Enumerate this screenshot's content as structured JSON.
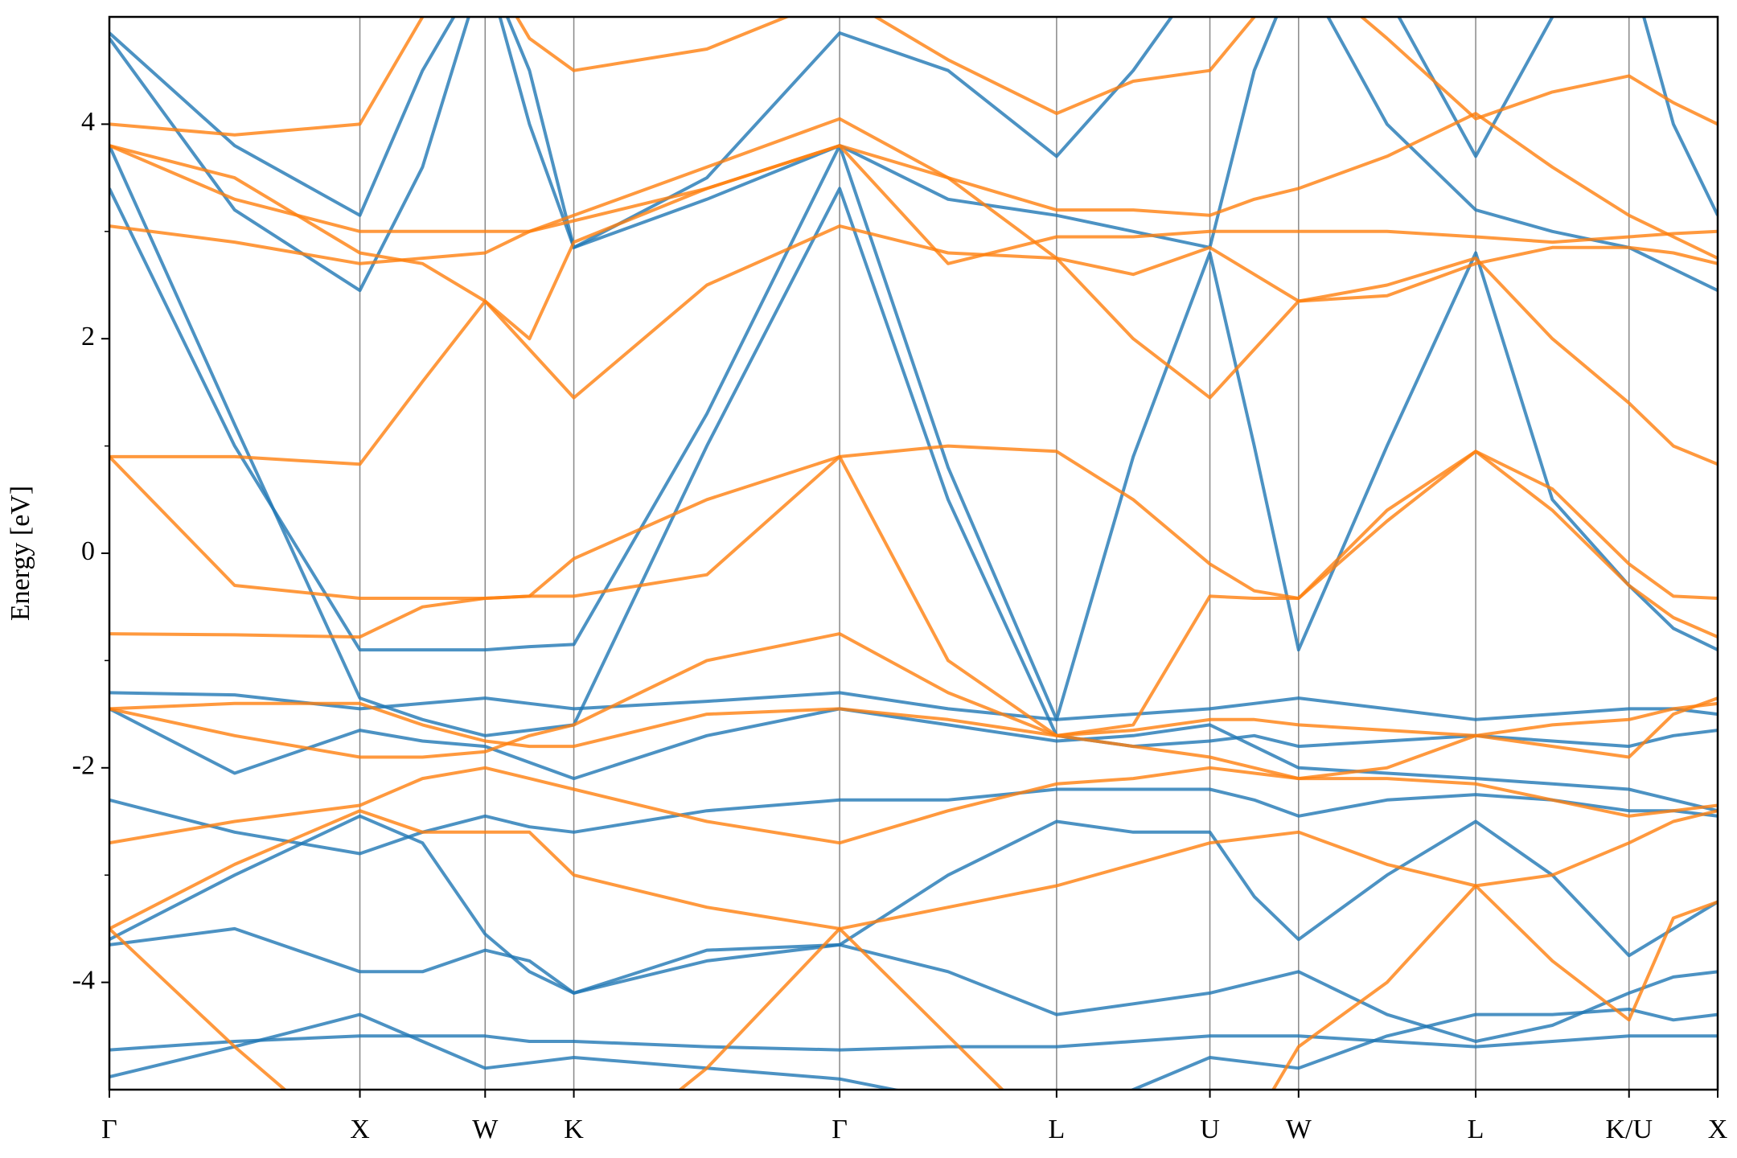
{
  "chart_data": {
    "type": "line",
    "ylabel": "Energy [eV]",
    "x": [
      0,
      0.5,
      1,
      1.25,
      1.5,
      1.677,
      1.854,
      2.385,
      2.915,
      3.348,
      3.781,
      4.087,
      4.393,
      4.57,
      4.747,
      5.1,
      5.454,
      5.76,
      6.066,
      6.243,
      6.42
    ],
    "xlim": [
      0,
      6.42
    ],
    "xticks": [
      {
        "value": 0,
        "label": "Γ"
      },
      {
        "value": 1,
        "label": "X"
      },
      {
        "value": 1.5,
        "label": "W"
      },
      {
        "value": 1.854,
        "label": "K"
      },
      {
        "value": 2.915,
        "label": "Γ"
      },
      {
        "value": 3.781,
        "label": "L"
      },
      {
        "value": 4.393,
        "label": "U"
      },
      {
        "value": 4.747,
        "label": "W"
      },
      {
        "value": 5.454,
        "label": "L"
      },
      {
        "value": 6.066,
        "label": "K/U"
      },
      {
        "value": 6.42,
        "label": "X"
      }
    ],
    "xgrid": true,
    "ylim": [
      -5,
      5
    ],
    "yticks": [
      -4,
      -2,
      0,
      2,
      4
    ],
    "yminorticks": [
      -3,
      -1,
      1,
      3
    ],
    "series": [
      {
        "color": "#1f77b4",
        "values": [
          -4.63,
          -4.55,
          -4.5,
          -4.5,
          -4.5,
          -4.55,
          -4.55,
          -4.6,
          -4.63,
          -4.6,
          -4.6,
          -4.55,
          -4.5,
          -4.5,
          -4.5,
          -4.55,
          -4.6,
          -4.55,
          -4.5,
          -4.5,
          -4.5
        ]
      },
      {
        "color": "#1f77b4",
        "values": [
          -4.88,
          -4.6,
          -4.3,
          -4.55,
          -4.8,
          -4.75,
          -4.7,
          -4.8,
          -4.9,
          -5.1,
          -5.3,
          -5.0,
          -4.7,
          -4.75,
          -4.8,
          -4.5,
          -4.3,
          -4.3,
          -4.25,
          -4.35,
          -4.3
        ]
      },
      {
        "color": "#1f77b4",
        "values": [
          -3.65,
          -3.5,
          -3.9,
          -3.9,
          -3.7,
          -3.8,
          -4.1,
          -3.8,
          -3.65,
          -3.0,
          -2.5,
          -2.6,
          -2.6,
          -3.2,
          -3.6,
          -3.0,
          -2.5,
          -3.0,
          -3.75,
          -3.5,
          -3.25
        ]
      },
      {
        "color": "#1f77b4",
        "values": [
          -3.6,
          -3.0,
          -2.45,
          -2.7,
          -3.55,
          -3.9,
          -4.1,
          -3.7,
          -3.65,
          -3.9,
          -4.3,
          -4.2,
          -4.1,
          -4.0,
          -3.9,
          -4.3,
          -4.55,
          -4.4,
          -4.1,
          -3.95,
          -3.9
        ]
      },
      {
        "color": "#1f77b4",
        "values": [
          -2.3,
          -2.6,
          -2.8,
          -2.6,
          -2.45,
          -2.55,
          -2.6,
          -2.4,
          -2.3,
          -2.3,
          -2.2,
          -2.2,
          -2.2,
          -2.3,
          -2.45,
          -2.3,
          -2.25,
          -2.3,
          -2.4,
          -2.4,
          -2.45
        ]
      },
      {
        "color": "#1f77b4",
        "values": [
          -1.45,
          -2.05,
          -1.65,
          -1.75,
          -1.8,
          -1.95,
          -2.1,
          -1.7,
          -1.45,
          -1.6,
          -1.75,
          -1.7,
          -1.6,
          -1.8,
          -2.0,
          -2.05,
          -2.1,
          -2.15,
          -2.2,
          -2.3,
          -2.4
        ]
      },
      {
        "color": "#1f77b4",
        "values": [
          -1.3,
          -1.32,
          -1.45,
          -1.4,
          -1.35,
          -1.4,
          -1.45,
          -1.38,
          -1.3,
          -1.45,
          -1.55,
          -1.5,
          -1.45,
          -1.4,
          -1.35,
          -1.45,
          -1.55,
          -1.5,
          -1.45,
          -1.45,
          -1.5
        ]
      },
      {
        "color": "#1f77b4",
        "values": [
          3.8,
          1.2,
          -1.35,
          -1.55,
          -1.7,
          -1.65,
          -1.6,
          1.0,
          3.4,
          0.5,
          -1.7,
          -1.8,
          -1.75,
          -1.7,
          -1.8,
          -1.75,
          -1.7,
          -1.75,
          -1.8,
          -1.7,
          -1.65
        ]
      },
      {
        "color": "#1f77b4",
        "values": [
          3.4,
          1.0,
          -0.9,
          -0.9,
          -0.9,
          -0.87,
          -0.85,
          1.3,
          3.8,
          0.8,
          -1.55,
          0.9,
          2.8,
          1.0,
          -0.9,
          1.0,
          2.8,
          0.5,
          -0.3,
          -0.7,
          -0.9
        ]
      },
      {
        "color": "#1f77b4",
        "values": [
          4.8,
          3.2,
          2.45,
          3.6,
          5.5,
          4.0,
          2.85,
          3.3,
          3.8,
          3.3,
          3.15,
          3.0,
          2.85,
          4.5,
          5.5,
          4.0,
          3.2,
          3.0,
          2.85,
          2.65,
          2.45
        ]
      },
      {
        "color": "#1f77b4",
        "values": [
          4.85,
          3.8,
          3.15,
          4.5,
          5.5,
          4.5,
          2.85,
          3.5,
          4.85,
          4.5,
          3.7,
          4.5,
          5.5,
          5.5,
          5.5,
          5.2,
          3.7,
          5.0,
          5.5,
          4.0,
          3.15
        ]
      },
      {
        "color": "#ff7f0e",
        "values": [
          0.9,
          0.9,
          0.83,
          1.6,
          2.35,
          1.9,
          1.45,
          2.5,
          3.05,
          2.8,
          2.75,
          2.0,
          1.45,
          1.9,
          2.35,
          2.5,
          2.75,
          2.0,
          1.4,
          1.0,
          0.83
        ]
      },
      {
        "color": "#ff7f0e",
        "values": [
          -0.75,
          -0.76,
          -0.78,
          -0.5,
          -0.42,
          -0.4,
          -0.05,
          0.5,
          0.9,
          1.0,
          0.95,
          0.5,
          -0.1,
          -0.35,
          -0.42,
          0.4,
          0.95,
          0.4,
          -0.3,
          -0.6,
          -0.78
        ]
      },
      {
        "color": "#ff7f0e",
        "values": [
          0.9,
          -0.3,
          -0.42,
          -0.42,
          -0.42,
          -0.4,
          -0.4,
          -0.2,
          0.9,
          -1.0,
          -1.7,
          -1.6,
          -0.4,
          -0.42,
          -0.42,
          0.3,
          0.95,
          0.6,
          -0.1,
          -0.4,
          -0.42
        ]
      },
      {
        "color": "#ff7f0e",
        "values": [
          -1.45,
          -1.7,
          -1.9,
          -1.9,
          -1.85,
          -1.7,
          -1.6,
          -1.0,
          -0.75,
          -1.3,
          -1.7,
          -1.8,
          -1.9,
          -2.0,
          -2.1,
          -2.0,
          -1.7,
          -1.8,
          -1.9,
          -1.5,
          -1.35
        ]
      },
      {
        "color": "#ff7f0e",
        "values": [
          -1.45,
          -1.4,
          -1.4,
          -1.6,
          -1.75,
          -1.8,
          -1.8,
          -1.5,
          -1.45,
          -1.55,
          -1.7,
          -1.65,
          -1.55,
          -1.55,
          -1.6,
          -1.65,
          -1.7,
          -1.6,
          -1.55,
          -1.45,
          -1.4
        ]
      },
      {
        "color": "#ff7f0e",
        "values": [
          -2.7,
          -2.5,
          -2.35,
          -2.1,
          -2.0,
          -2.1,
          -2.2,
          -2.5,
          -2.7,
          -2.4,
          -2.15,
          -2.1,
          -2.0,
          -2.05,
          -2.1,
          -2.1,
          -2.15,
          -2.3,
          -2.45,
          -2.4,
          -2.35
        ]
      },
      {
        "color": "#ff7f0e",
        "values": [
          -3.5,
          -2.9,
          -2.4,
          -2.6,
          -2.6,
          -2.6,
          -3.0,
          -3.3,
          -3.5,
          -3.3,
          -3.1,
          -2.9,
          -2.7,
          -2.65,
          -2.6,
          -2.9,
          -3.1,
          -3.0,
          -2.7,
          -2.5,
          -2.4
        ]
      },
      {
        "color": "#ff7f0e",
        "values": [
          -3.5,
          -4.6,
          -5.6,
          -5.8,
          -5.8,
          -5.8,
          -5.8,
          -4.8,
          -3.5,
          -4.5,
          -5.5,
          -5.5,
          -5.5,
          -5.3,
          -4.6,
          -4.0,
          -3.1,
          -3.8,
          -4.35,
          -3.4,
          -3.25
        ]
      },
      {
        "color": "#ff7f0e",
        "values": [
          3.8,
          3.3,
          3.0,
          3.0,
          3.0,
          3.0,
          3.1,
          3.4,
          3.8,
          2.7,
          2.95,
          2.95,
          3.0,
          3.0,
          3.0,
          3.0,
          2.95,
          2.9,
          2.95,
          2.98,
          3.0
        ]
      },
      {
        "color": "#ff7f0e",
        "values": [
          3.05,
          2.9,
          2.7,
          2.75,
          2.8,
          3.0,
          3.15,
          3.6,
          4.05,
          3.5,
          3.2,
          3.2,
          3.15,
          3.3,
          3.4,
          3.7,
          4.1,
          3.6,
          3.15,
          2.95,
          2.75
        ]
      },
      {
        "color": "#ff7f0e",
        "values": [
          4.0,
          3.9,
          4.0,
          5.0,
          5.5,
          4.8,
          4.5,
          4.7,
          5.2,
          4.6,
          4.1,
          4.4,
          4.5,
          5.0,
          5.5,
          4.8,
          4.05,
          4.3,
          4.45,
          4.2,
          4.0
        ]
      },
      {
        "color": "#ff7f0e",
        "values": [
          3.8,
          3.5,
          2.8,
          2.7,
          2.35,
          2.0,
          2.9,
          3.4,
          3.8,
          3.5,
          2.75,
          2.6,
          2.85,
          2.6,
          2.35,
          2.4,
          2.7,
          2.85,
          2.85,
          2.8,
          2.7
        ]
      }
    ]
  }
}
